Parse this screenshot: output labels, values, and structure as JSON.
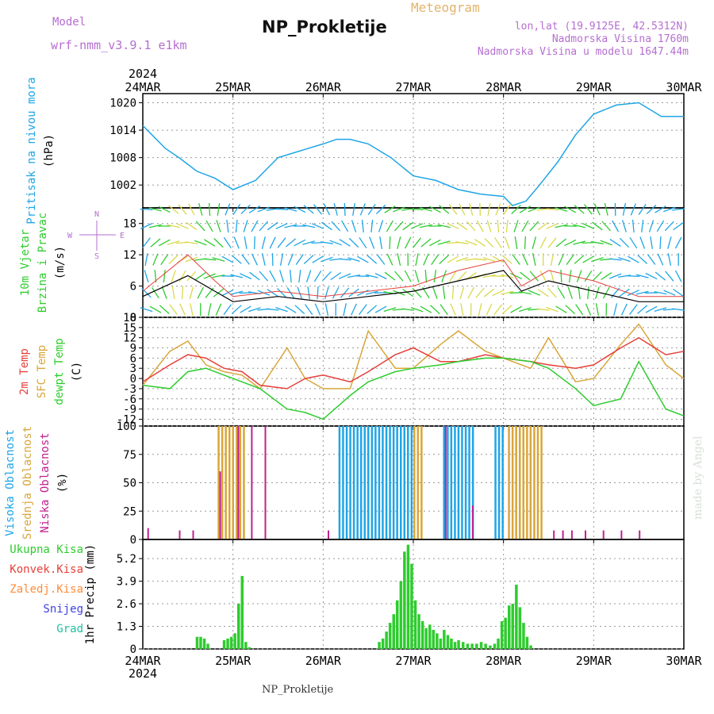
{
  "header": {
    "model_label": "Model",
    "model_name": "wrf-nmm_v3.9.1  e1km",
    "title": "NP_Prokletije",
    "subtitle": "Meteogram",
    "coords": "lon,lat (19.9125E, 42.5312N)",
    "elev": "Nadmorska Visina 1760m",
    "elev_model": "Nadmorska Visina u modelu 1647.44m",
    "footer": "NP_Prokletije",
    "credit": "made by Angel",
    "year": "2024"
  },
  "colors": {
    "pressure": "#1fa5e6",
    "temp2m": "#e6403a",
    "sfc": "#d9a63a",
    "dewpt": "#2ecc2e",
    "high": "#1fa5e6",
    "mid": "#d9a63a",
    "low": "#c0208f",
    "precip_total": "#2ecc2e"
  },
  "chart_data": [
    {
      "type": "line",
      "name": "pressure",
      "ylabel": [
        "Pritisak na nivou mora",
        "(hPa)"
      ],
      "x_labels": [
        "24MAR",
        "25MAR",
        "26MAR",
        "27MAR",
        "28MAR",
        "29MAR",
        "30MAR"
      ],
      "ylim": [
        997,
        1022
      ],
      "yticks": [
        1002,
        1008,
        1014,
        1020
      ],
      "series": [
        {
          "x": [
            0,
            0.1,
            0.25,
            0.4,
            0.6,
            0.8,
            1.0,
            1.25,
            1.5,
            1.75,
            2.0,
            2.15,
            2.3,
            2.5,
            2.75,
            3.0,
            3.25,
            3.5,
            3.75,
            4.0,
            4.1,
            4.25,
            4.4,
            4.6,
            4.8,
            5.0,
            5.25,
            5.5,
            5.75,
            6.0
          ],
          "values": [
            1015,
            1013,
            1010,
            1008,
            1005,
            1003.5,
            1001,
            1003,
            1008,
            1009.5,
            1011,
            1012,
            1012,
            1011,
            1008,
            1004,
            1003,
            1001,
            1000,
            999.5,
            997.5,
            998.5,
            1002,
            1007,
            1013,
            1017.5,
            1019.5,
            1020,
            1017,
            1017
          ]
        }
      ]
    },
    {
      "type": "line",
      "name": "wind",
      "ylabel": [
        "10m Vjetar",
        "Brzina i Pravac",
        "(m/s)"
      ],
      "ylim": [
        0,
        21
      ],
      "yticks": [
        0,
        6,
        12,
        18
      ],
      "compass": [
        "N",
        "W",
        "E",
        "S"
      ],
      "series": [
        {
          "name": "speed",
          "x": [
            0,
            0.5,
            0.8,
            1.0,
            1.5,
            2.0,
            2.5,
            3.0,
            3.5,
            4.0,
            4.2,
            4.5,
            5.0,
            5.5,
            6.0
          ],
          "values": [
            4,
            8,
            5,
            3,
            4,
            3,
            4,
            5,
            7,
            9,
            5,
            7,
            5,
            3,
            3
          ]
        },
        {
          "name": "gust",
          "x": [
            0,
            0.5,
            0.8,
            1.0,
            1.5,
            2.0,
            2.5,
            3.0,
            3.5,
            4.0,
            4.2,
            4.5,
            5.0,
            5.5,
            6.0
          ],
          "values": [
            5,
            12,
            7,
            4,
            5,
            4,
            5,
            6,
            9,
            11,
            6,
            9,
            7,
            4,
            4
          ]
        }
      ]
    },
    {
      "type": "line",
      "name": "temperature",
      "ylabel": [
        "2m Temp",
        "SFC Temp",
        "dewpt Temp",
        "(C)"
      ],
      "ylim": [
        -14,
        18
      ],
      "yticks": [
        -12,
        -9,
        -6,
        -3,
        0,
        3,
        6,
        9,
        12,
        15,
        18
      ],
      "series": [
        {
          "name": "2m Temp",
          "x": [
            0,
            0.3,
            0.5,
            0.7,
            0.9,
            1.1,
            1.3,
            1.6,
            1.8,
            2.0,
            2.3,
            2.5,
            2.8,
            3.0,
            3.3,
            3.5,
            3.8,
            4.0,
            4.3,
            4.5,
            4.8,
            5.0,
            5.3,
            5.5,
            5.8,
            6.0
          ],
          "values": [
            -1,
            4,
            7,
            6,
            3,
            2,
            -2,
            -3,
            0,
            1,
            -1,
            2,
            7,
            9,
            5,
            5,
            7,
            6,
            5,
            4,
            3,
            4,
            9,
            12,
            7,
            8
          ]
        },
        {
          "name": "SFC Temp",
          "x": [
            0,
            0.3,
            0.5,
            0.7,
            0.9,
            1.1,
            1.3,
            1.6,
            1.8,
            2.0,
            2.3,
            2.5,
            2.8,
            3.0,
            3.3,
            3.5,
            3.8,
            4.0,
            4.3,
            4.5,
            4.8,
            5.0,
            5.3,
            5.5,
            5.8,
            6.0
          ],
          "values": [
            -2,
            8,
            11,
            4,
            2,
            1,
            -3,
            9,
            0,
            -3,
            -3,
            14,
            3,
            3,
            10,
            14,
            8,
            6,
            3,
            12,
            -1,
            0,
            10,
            16,
            4,
            0
          ]
        },
        {
          "name": "dewpt Temp",
          "x": [
            0,
            0.3,
            0.5,
            0.7,
            0.9,
            1.1,
            1.3,
            1.6,
            1.8,
            2.0,
            2.3,
            2.5,
            2.8,
            3.0,
            3.3,
            3.5,
            3.8,
            4.0,
            4.3,
            4.5,
            4.8,
            5.0,
            5.3,
            5.5,
            5.8,
            6.0
          ],
          "values": [
            -2,
            -3,
            2,
            3,
            1,
            -1,
            -3,
            -9,
            -10,
            -12,
            -5,
            -1,
            2,
            3,
            4,
            5,
            6,
            6,
            5,
            3,
            -3,
            -8,
            -6,
            5,
            -9,
            -11
          ]
        }
      ]
    },
    {
      "type": "bar",
      "name": "cloud",
      "ylabel": [
        "Visoka Oblacnost",
        "Srednja Oblacnost",
        "Niska Oblacnost",
        "(%)"
      ],
      "ylim": [
        0,
        100
      ],
      "yticks": [
        0,
        25,
        50,
        75,
        100
      ],
      "series": [
        {
          "name": "Visoka",
          "ranges": [
            [
              2.17,
              2.98
            ],
            [
              3.33,
              3.66
            ],
            [
              3.9,
              4.0
            ]
          ],
          "value": 100
        },
        {
          "name": "Srednja",
          "ranges": [
            [
              0.83,
              1.12
            ],
            [
              3.0,
              3.1
            ],
            [
              4.05,
              4.42
            ]
          ],
          "value": 100
        },
        {
          "name": "Niska",
          "x": [
            0.05,
            0.4,
            0.55,
            0.85,
            1.05,
            1.2,
            1.35,
            2.05,
            3.35,
            3.65,
            4.55,
            4.65,
            4.75,
            4.9,
            5.1,
            5.3,
            5.5
          ],
          "values": [
            10,
            8,
            8,
            60,
            100,
            100,
            100,
            8,
            100,
            30,
            8,
            8,
            8,
            8,
            8,
            8,
            8
          ]
        }
      ]
    },
    {
      "type": "bar",
      "name": "precip",
      "ylabel": [
        "Ukupna Kisa",
        "Konvek.Kisa",
        "Zaledj.Kisa",
        "Snijeg",
        "Grad",
        "1hr Precip (mm)"
      ],
      "ylim": [
        0,
        6.3
      ],
      "yticks": [
        0,
        1.3,
        2.6,
        3.9,
        5.2
      ],
      "series": [
        {
          "name": "Ukupna Kisa",
          "x": [
            0.6,
            0.64,
            0.68,
            0.72,
            0.9,
            0.94,
            0.98,
            1.02,
            1.06,
            1.1,
            1.14,
            1.18,
            2.62,
            2.66,
            2.7,
            2.74,
            2.78,
            2.82,
            2.86,
            2.9,
            2.94,
            2.98,
            3.02,
            3.06,
            3.1,
            3.14,
            3.18,
            3.22,
            3.26,
            3.3,
            3.34,
            3.38,
            3.42,
            3.46,
            3.5,
            3.55,
            3.6,
            3.65,
            3.7,
            3.75,
            3.8,
            3.85,
            3.9,
            3.94,
            3.98,
            4.02,
            4.06,
            4.1,
            4.14,
            4.18,
            4.22,
            4.26,
            4.3
          ],
          "values": [
            0.7,
            0.7,
            0.6,
            0.3,
            0.5,
            0.6,
            0.7,
            0.9,
            2.6,
            4.2,
            0.4,
            0.1,
            0.4,
            0.6,
            1.0,
            1.5,
            2.0,
            2.8,
            3.9,
            5.6,
            6.0,
            4.9,
            2.8,
            2.0,
            1.6,
            1.2,
            1.4,
            1.1,
            0.9,
            0.6,
            1.1,
            0.8,
            0.6,
            0.4,
            0.5,
            0.4,
            0.3,
            0.3,
            0.3,
            0.4,
            0.3,
            0.2,
            0.3,
            0.6,
            1.6,
            1.8,
            2.5,
            2.6,
            3.7,
            2.4,
            1.5,
            0.7,
            0.2
          ]
        }
      ]
    }
  ]
}
